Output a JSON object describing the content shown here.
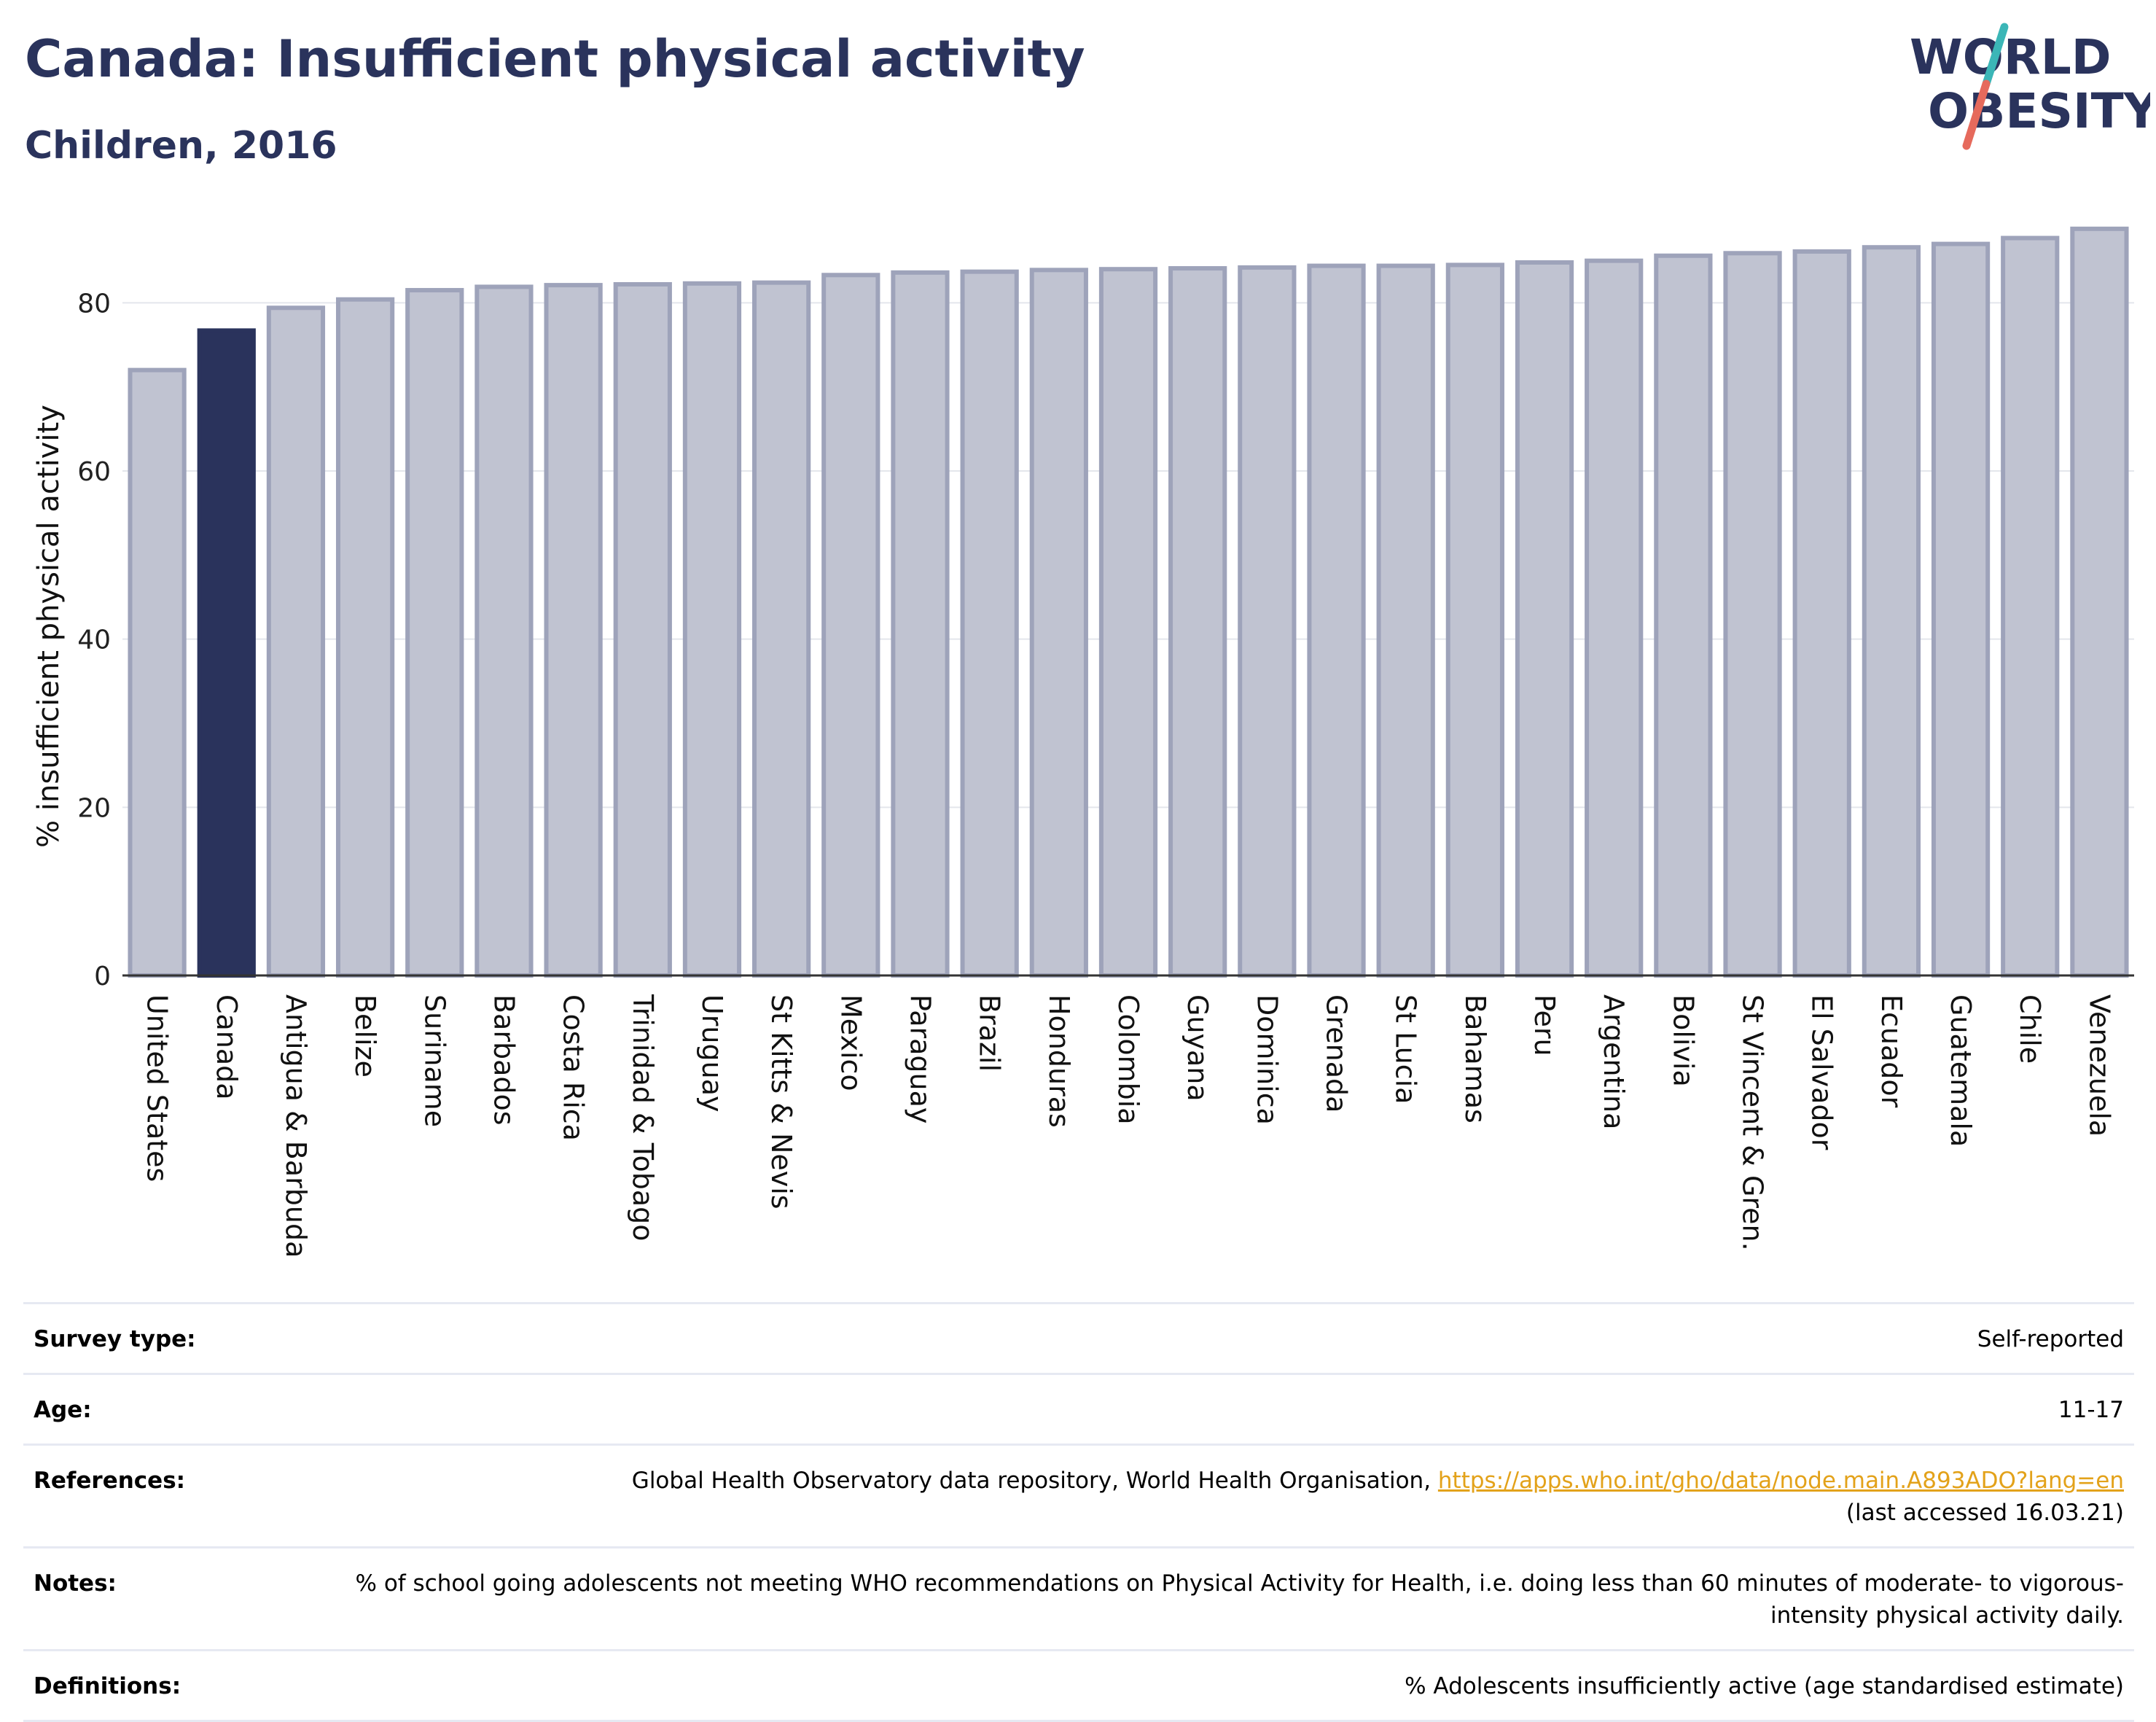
{
  "header": {
    "title": "Canada: Insufficient physical activity",
    "subtitle": "Children, 2016",
    "logo_line1": "WORLD",
    "logo_line2": "OBESITY"
  },
  "colors": {
    "highlight": "#2a335c",
    "bar_fill": "#c0c3d1",
    "bar_stroke": "#9ea3ba",
    "title": "#2a335c",
    "link": "#e3a21a",
    "logo_teal": "#3bb6b7",
    "logo_coral": "#e66a5c"
  },
  "chart_data": {
    "type": "bar",
    "title": "",
    "xlabel": "",
    "ylabel": "% insufficient physical activity",
    "ylim": [
      0,
      90
    ],
    "yticks": [
      0,
      20,
      40,
      60,
      80
    ],
    "grid": true,
    "highlight_category": "Canada",
    "categories": [
      "United States",
      "Canada",
      "Antigua & Barbuda",
      "Belize",
      "Suriname",
      "Barbados",
      "Costa Rica",
      "Trinidad & Tobago",
      "Uruguay",
      "St Kitts & Nevis",
      "Mexico",
      "Paraguay",
      "Brazil",
      "Honduras",
      "Colombia",
      "Guyana",
      "Dominica",
      "Grenada",
      "St Lucia",
      "Bahamas",
      "Peru",
      "Argentina",
      "Bolivia",
      "St Vincent & Gren.",
      "El Salvador",
      "Ecuador",
      "Guatemala",
      "Chile",
      "Venezuela"
    ],
    "values": [
      72.0,
      76.7,
      79.4,
      80.4,
      81.5,
      81.9,
      82.1,
      82.2,
      82.3,
      82.4,
      83.3,
      83.6,
      83.7,
      83.9,
      84.0,
      84.1,
      84.2,
      84.4,
      84.4,
      84.5,
      84.8,
      85.0,
      85.6,
      85.9,
      86.1,
      86.6,
      87.0,
      87.7,
      88.8
    ]
  },
  "info": [
    {
      "key": "Survey type:",
      "value": "Self-reported"
    },
    {
      "key": "Age:",
      "value": "11-17"
    },
    {
      "key": "References:",
      "value": "Global Health Observatory data repository, World Health Organisation, ",
      "link": "https://apps.who.int/gho/data/node.main.A893ADO?lang=en",
      "value_after": "(last accessed 16.03.21)"
    },
    {
      "key": "Notes:",
      "value": "% of school going adolescents not meeting WHO recommendations on Physical Activity for Health, i.e. doing less than 60 minutes of moderate- to vigorous-intensity physical activity daily."
    },
    {
      "key": "Definitions:",
      "value": "% Adolescents insufficiently active (age standardised estimate)"
    }
  ]
}
